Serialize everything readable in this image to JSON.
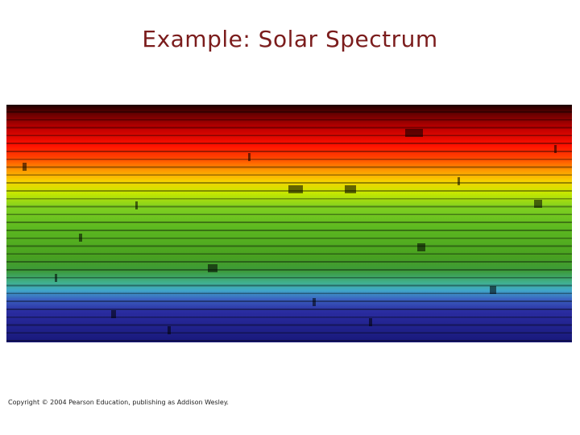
{
  "slide": {
    "title": "Example: Solar Spectrum",
    "footer": "Copyright © 2004 Pearson Education, publishing as Addison Wesley."
  }
}
